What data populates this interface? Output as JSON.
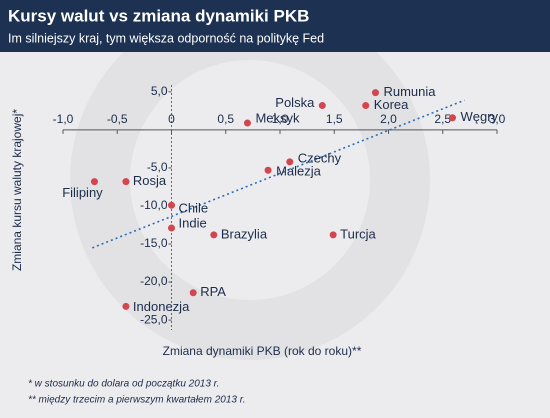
{
  "chart_data": {
    "type": "scatter",
    "title": "Kursy walut vs zmiana dynamiki PKB",
    "subtitle": "Im silniejszy kraj, tym większa odporność na politykę Fed",
    "x_label": "Zmiana dynamiki PKB (rok do roku)**",
    "y_label": "Zmiana kursu waluty krajowej*",
    "footnotes": [
      "* w stosunku do dolara od początku 2013 r.",
      "** między trzecim a pierwszym kwartałem 2013 r."
    ],
    "color": "#d2464f",
    "series": [
      {
        "labels": [
          "Rumunia",
          "Polska",
          "Korea",
          "Węgry",
          "Meksyk",
          "Czechy",
          "Malezja",
          "Filipiny",
          "Rosja",
          "Chile",
          "Indie",
          "Brazylia",
          "Turcja",
          "RPA",
          "Indonezja"
        ],
        "x": [
          1.88,
          1.39,
          1.79,
          2.59,
          0.7,
          1.09,
          0.89,
          -0.71,
          -0.42,
          0.0,
          0.0,
          0.39,
          1.49,
          0.2,
          -0.42
        ],
        "values": [
          4.9,
          3.2,
          3.2,
          1.6,
          0.9,
          -4.2,
          -5.3,
          -6.8,
          -6.8,
          -9.9,
          -12.9,
          -13.8,
          -13.8,
          -21.4,
          -23.2
        ]
      }
    ],
    "trendline": {
      "color": "#2a6ebb",
      "x": [
        -0.73,
        2.7
      ],
      "values": [
        -15.5,
        3.9
      ]
    },
    "xlim": [
      -1,
      3
    ],
    "ylim": [
      -26.3,
      5.9
    ],
    "xticks": [
      {
        "value": -1,
        "label": "-1,0"
      },
      {
        "value": -0.5,
        "label": "-0,5"
      },
      {
        "value": 0,
        "label": "0"
      },
      {
        "value": 0.5,
        "label": "0,5"
      },
      {
        "value": 1,
        "label": "1,0"
      },
      {
        "value": 1.5,
        "label": "1,5"
      },
      {
        "value": 2,
        "label": "2,0"
      },
      {
        "value": 2.5,
        "label": "2,5"
      },
      {
        "value": 3,
        "label": "3,0"
      }
    ],
    "yticks": [
      {
        "value": 5,
        "label": "5,0"
      },
      {
        "value": -5,
        "label": "-5,0"
      },
      {
        "value": -10,
        "label": "-10,0"
      },
      {
        "value": -15,
        "label": "-15,0"
      },
      {
        "value": -20,
        "label": "-20,0"
      },
      {
        "value": -25,
        "label": "-25,0"
      }
    ]
  }
}
